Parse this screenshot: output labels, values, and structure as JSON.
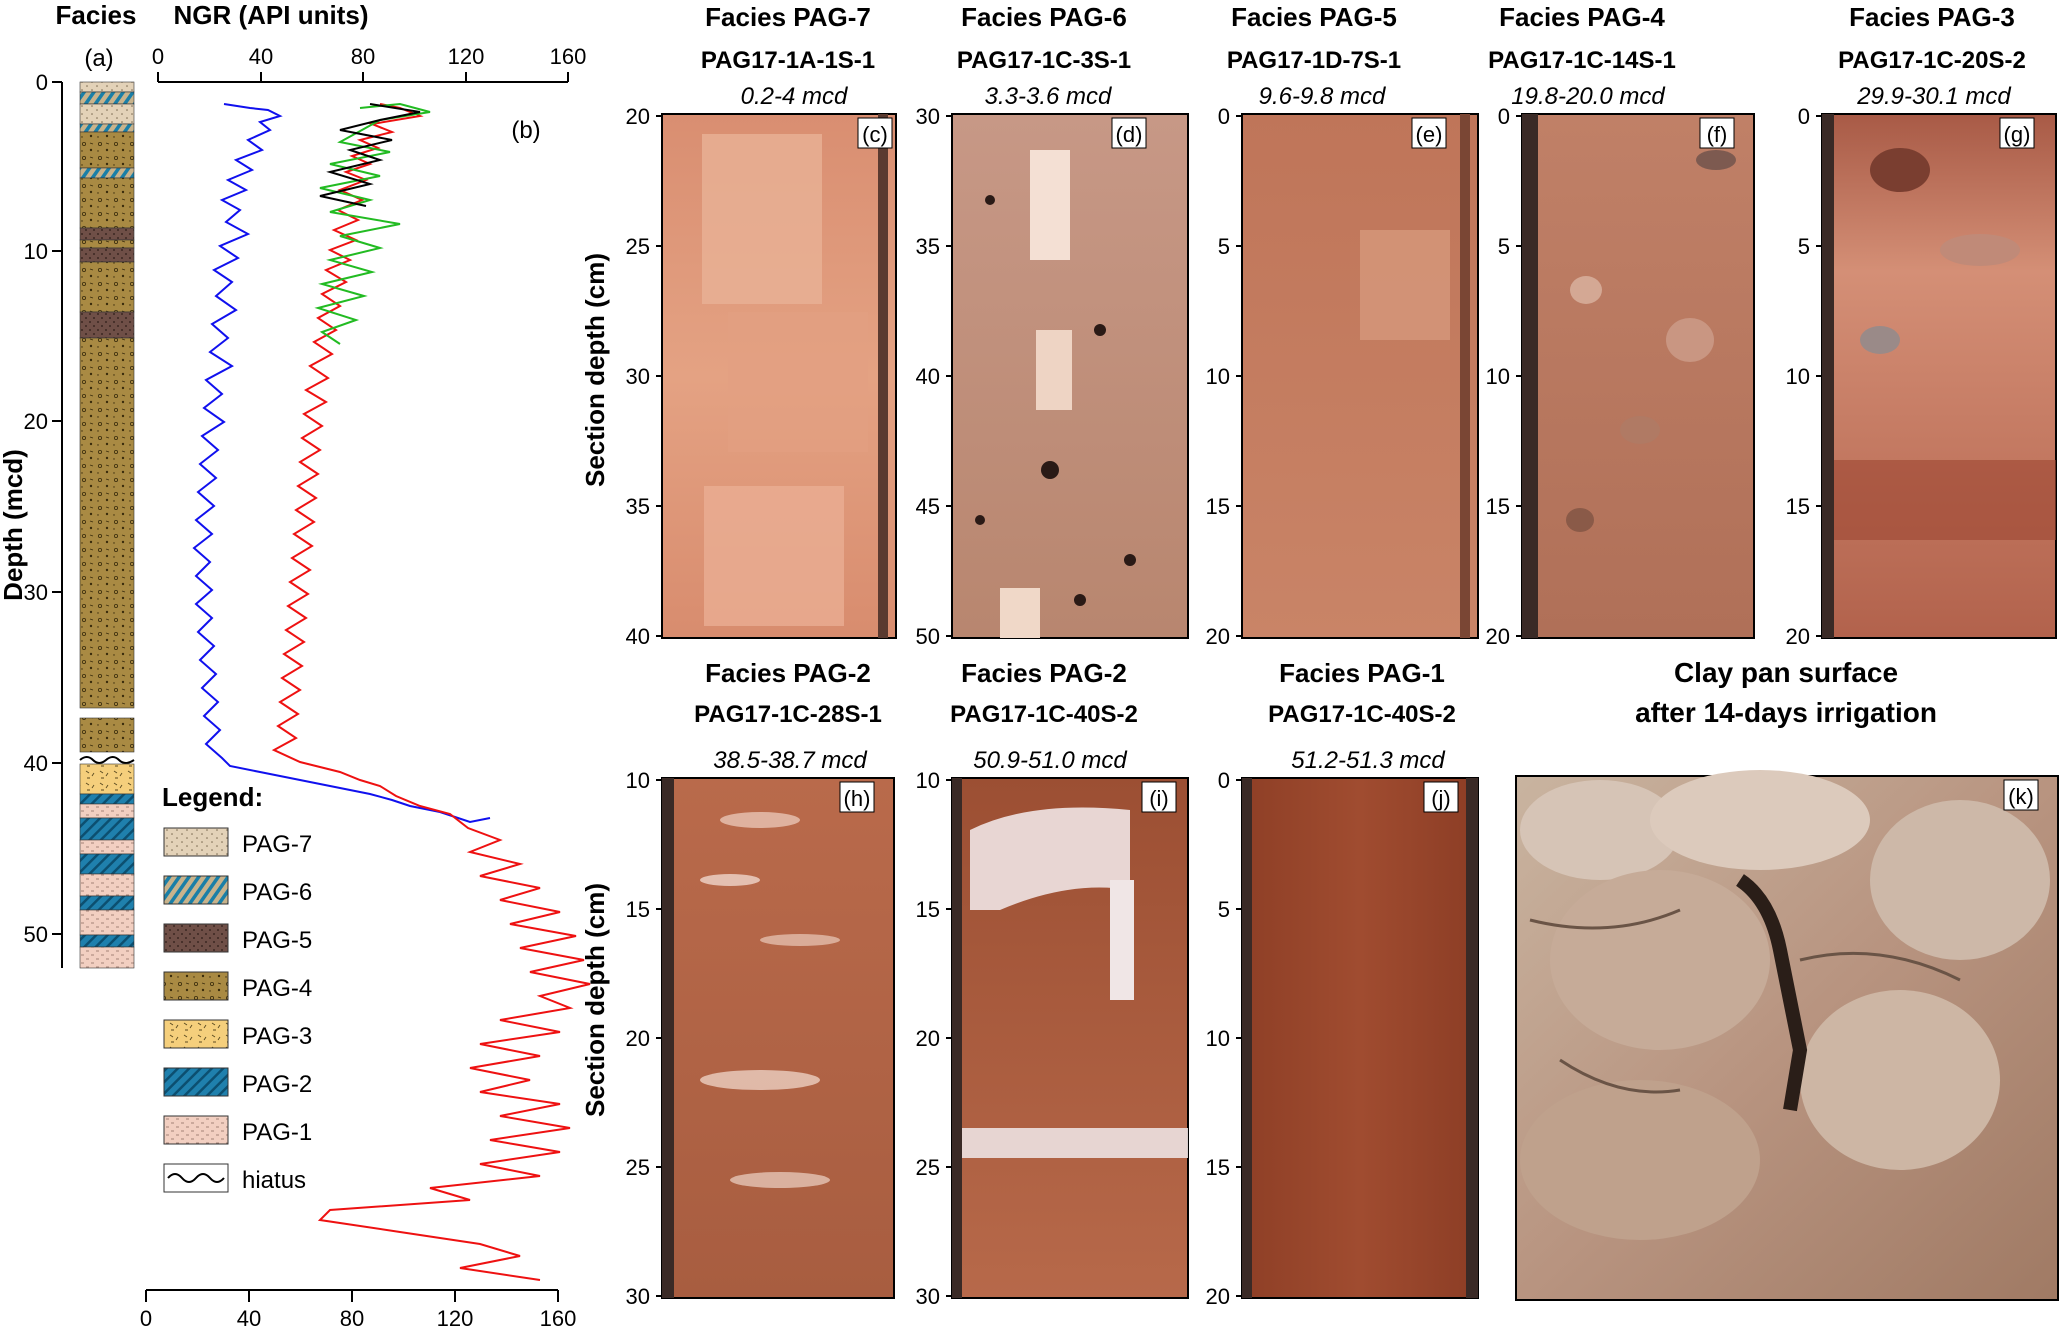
{
  "figure": {
    "panel_a": {
      "header": "Facies",
      "letter": "(a)",
      "depth_label": "Depth (mcd)",
      "depth_ticks": [
        "0",
        "10",
        "20",
        "30",
        "40",
        "50"
      ]
    },
    "panel_b": {
      "header": "NGR (API units)",
      "letter": "(b)",
      "top_ticks": [
        "0",
        "40",
        "80",
        "120",
        "160"
      ],
      "bottom_ticks": [
        "0",
        "40",
        "80",
        "120",
        "160"
      ]
    },
    "legend": {
      "title": "Legend:",
      "items": [
        "PAG-7",
        "PAG-6",
        "PAG-5",
        "PAG-4",
        "PAG-3",
        "PAG-2",
        "PAG-1",
        "hiatus"
      ]
    },
    "cores": [
      {
        "facies": "Facies PAG-7",
        "core_id": "PAG17-1A-1S-1",
        "depth": "0.2-4 mcd",
        "letter": "(c)",
        "ticks": [
          "20",
          "25",
          "30",
          "35",
          "40"
        ]
      },
      {
        "facies": "Facies PAG-6",
        "core_id": "PAG17-1C-3S-1",
        "depth": "3.3-3.6 mcd",
        "letter": "(d)",
        "ticks": [
          "30",
          "35",
          "40",
          "45",
          "50"
        ]
      },
      {
        "facies": "Facies PAG-5",
        "core_id": "PAG17-1D-7S-1",
        "depth": "9.6-9.8 mcd",
        "letter": "(e)",
        "ticks": [
          "0",
          "5",
          "10",
          "15",
          "20"
        ]
      },
      {
        "facies": "Facies PAG-4",
        "core_id": "PAG17-1C-14S-1",
        "depth": "19.8-20.0 mcd",
        "letter": "(f)",
        "ticks": [
          "0",
          "5",
          "10",
          "15",
          "20"
        ]
      },
      {
        "facies": "Facies PAG-3",
        "core_id": "PAG17-1C-20S-2",
        "depth": "29.9-30.1 mcd",
        "letter": "(g)",
        "ticks": [
          "0",
          "5",
          "10",
          "15",
          "20"
        ]
      },
      {
        "facies": "Facies PAG-2",
        "core_id": "PAG17-1C-28S-1",
        "depth": "38.5-38.7 mcd",
        "letter": "(h)",
        "ticks": [
          "10",
          "15",
          "20",
          "25",
          "30"
        ]
      },
      {
        "facies": "Facies PAG-2",
        "core_id": "PAG17-1C-40S-2",
        "depth": "50.9-51.0 mcd",
        "letter": "(i)",
        "ticks": [
          "10",
          "15",
          "20",
          "25",
          "30"
        ]
      },
      {
        "facies": "Facies PAG-1",
        "core_id": "PAG17-1C-40S-2",
        "depth": "51.2-51.3 mcd",
        "letter": "(j)",
        "ticks": [
          "0",
          "5",
          "10",
          "15",
          "20"
        ]
      }
    ],
    "section_depth_label": "Section depth (cm)",
    "clay_pan": {
      "title_line1": "Clay pan surface",
      "title_line2": "after 14-days irrigation",
      "letter": "(k)"
    }
  },
  "colors": {
    "pag7": "#e3d2b8",
    "pag6": "#1a7fa7",
    "pag5": "#6f4f47",
    "pag4": "#a98a43",
    "pag3": "#f5cf7c",
    "pag2": "#1f80ad",
    "pag1": "#f2cfc1",
    "ngr_blue": "#1010ee",
    "ngr_red": "#ee1111",
    "ngr_green": "#22bb22",
    "ngr_black": "#000000"
  }
}
